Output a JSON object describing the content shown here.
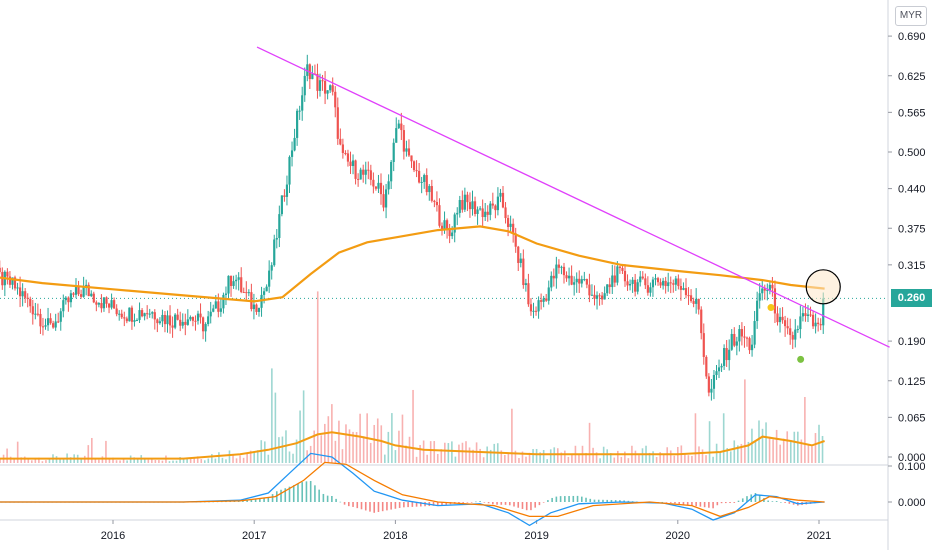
{
  "header": {
    "currency": "MYR"
  },
  "last_price": "0.260",
  "colors": {
    "up": "#26a69a",
    "down": "#ef5350",
    "ma_main": "#f39c12",
    "trendline": "#e040fb",
    "macd": "#2196f3",
    "signal": "#f57c00",
    "highlight_fill": "#fde7c9",
    "axis_text": "#131722"
  },
  "chart_data": [
    {
      "type": "candlestick",
      "name": "price",
      "y_ticks": [
        "0.690",
        "0.625",
        "0.565",
        "0.500",
        "0.440",
        "0.375",
        "0.315",
        "0.260",
        "0.190",
        "0.125",
        "0.065",
        "0.000"
      ],
      "y_tick_values": [
        0.69,
        0.625,
        0.565,
        0.5,
        0.44,
        0.375,
        0.315,
        0.26,
        0.19,
        0.125,
        0.065,
        0.0
      ],
      "x_ticks": [
        "2016",
        "2017",
        "2018",
        "2019",
        "2020",
        "2021"
      ],
      "x_tick_values": [
        2016,
        2017,
        2018,
        2019,
        2020,
        2021
      ],
      "price_path": [
        [
          2015.15,
          0.3
        ],
        [
          2015.3,
          0.28
        ],
        [
          2015.45,
          0.24
        ],
        [
          2015.55,
          0.21
        ],
        [
          2015.7,
          0.26
        ],
        [
          2015.8,
          0.275
        ],
        [
          2015.95,
          0.25
        ],
        [
          2016.1,
          0.235
        ],
        [
          2016.25,
          0.24
        ],
        [
          2016.4,
          0.225
        ],
        [
          2016.55,
          0.23
        ],
        [
          2016.65,
          0.215
        ],
        [
          2016.75,
          0.25
        ],
        [
          2016.85,
          0.3
        ],
        [
          2016.92,
          0.27
        ],
        [
          2017.0,
          0.245
        ],
        [
          2017.1,
          0.285
        ],
        [
          2017.2,
          0.42
        ],
        [
          2017.3,
          0.55
        ],
        [
          2017.38,
          0.64
        ],
        [
          2017.45,
          0.61
        ],
        [
          2017.55,
          0.6
        ],
        [
          2017.62,
          0.49
        ],
        [
          2017.72,
          0.47
        ],
        [
          2017.85,
          0.45
        ],
        [
          2017.92,
          0.42
        ],
        [
          2018.02,
          0.55
        ],
        [
          2018.1,
          0.48
        ],
        [
          2018.2,
          0.45
        ],
        [
          2018.3,
          0.4
        ],
        [
          2018.38,
          0.36
        ],
        [
          2018.45,
          0.42
        ],
        [
          2018.55,
          0.41
        ],
        [
          2018.65,
          0.4
        ],
        [
          2018.75,
          0.42
        ],
        [
          2018.82,
          0.37
        ],
        [
          2018.9,
          0.3
        ],
        [
          2018.96,
          0.235
        ],
        [
          2019.05,
          0.26
        ],
        [
          2019.15,
          0.31
        ],
        [
          2019.25,
          0.29
        ],
        [
          2019.35,
          0.285
        ],
        [
          2019.45,
          0.25
        ],
        [
          2019.55,
          0.3
        ],
        [
          2019.65,
          0.29
        ],
        [
          2019.75,
          0.28
        ],
        [
          2019.85,
          0.29
        ],
        [
          2019.95,
          0.285
        ],
        [
          2020.05,
          0.28
        ],
        [
          2020.15,
          0.24
        ],
        [
          2020.22,
          0.1
        ],
        [
          2020.3,
          0.15
        ],
        [
          2020.38,
          0.19
        ],
        [
          2020.45,
          0.2
        ],
        [
          2020.52,
          0.18
        ],
        [
          2020.58,
          0.27
        ],
        [
          2020.65,
          0.28
        ],
        [
          2020.72,
          0.22
        ],
        [
          2020.8,
          0.19
        ],
        [
          2020.88,
          0.23
        ],
        [
          2020.95,
          0.22
        ],
        [
          2021.0,
          0.205
        ],
        [
          2021.04,
          0.26
        ]
      ],
      "ma_long": [
        [
          2015.0,
          0.3
        ],
        [
          2015.5,
          0.285
        ],
        [
          2016.0,
          0.275
        ],
        [
          2016.5,
          0.265
        ],
        [
          2017.0,
          0.255
        ],
        [
          2017.2,
          0.262
        ],
        [
          2017.4,
          0.3
        ],
        [
          2017.6,
          0.335
        ],
        [
          2017.8,
          0.352
        ],
        [
          2018.0,
          0.36
        ],
        [
          2018.3,
          0.372
        ],
        [
          2018.6,
          0.378
        ],
        [
          2018.8,
          0.37
        ],
        [
          2019.0,
          0.35
        ],
        [
          2019.3,
          0.33
        ],
        [
          2019.6,
          0.315
        ],
        [
          2020.0,
          0.305
        ],
        [
          2020.3,
          0.298
        ],
        [
          2020.6,
          0.29
        ],
        [
          2020.8,
          0.282
        ],
        [
          2021.04,
          0.276
        ]
      ],
      "trendline": [
        [
          2017.02,
          0.672
        ],
        [
          2021.5,
          0.18
        ]
      ],
      "markers": [
        {
          "x": 2020.66,
          "y": 0.245,
          "color": "#f5c518"
        },
        {
          "x": 2020.87,
          "y": 0.16,
          "color": "#7cc242"
        }
      ],
      "highlight": {
        "x": 2021.03,
        "y": 0.279
      }
    },
    {
      "type": "bar",
      "name": "volume",
      "vol_spikes": [
        [
          2017.12,
          0.43
        ],
        [
          2017.35,
          0.33
        ],
        [
          2017.45,
          0.26
        ],
        [
          2018.05,
          0.22
        ],
        [
          2020.22,
          0.19
        ],
        [
          2020.48,
          0.38
        ],
        [
          2020.9,
          0.3
        ],
        [
          2021.04,
          0.58
        ]
      ],
      "vol_ma": [
        [
          2015.0,
          0.02
        ],
        [
          2016.5,
          0.02
        ],
        [
          2016.9,
          0.04
        ],
        [
          2017.1,
          0.06
        ],
        [
          2017.3,
          0.09
        ],
        [
          2017.45,
          0.13
        ],
        [
          2017.55,
          0.14
        ],
        [
          2017.75,
          0.12
        ],
        [
          2017.9,
          0.1
        ],
        [
          2018.0,
          0.08
        ],
        [
          2018.2,
          0.06
        ],
        [
          2018.6,
          0.05
        ],
        [
          2019.0,
          0.04
        ],
        [
          2019.5,
          0.04
        ],
        [
          2020.0,
          0.04
        ],
        [
          2020.3,
          0.05
        ],
        [
          2020.5,
          0.08
        ],
        [
          2020.6,
          0.12
        ],
        [
          2020.8,
          0.1
        ],
        [
          2020.95,
          0.08
        ],
        [
          2021.04,
          0.1
        ]
      ]
    },
    {
      "type": "line",
      "name": "macd",
      "y_ticks": [
        "0.100",
        "0.000"
      ],
      "y_tick_values": [
        0.1,
        0.0
      ],
      "series_macd": [
        [
          2015.0,
          0.0
        ],
        [
          2016.5,
          0.0
        ],
        [
          2016.9,
          0.005
        ],
        [
          2017.1,
          0.025
        ],
        [
          2017.25,
          0.08
        ],
        [
          2017.4,
          0.135
        ],
        [
          2017.55,
          0.125
        ],
        [
          2017.7,
          0.08
        ],
        [
          2017.85,
          0.03
        ],
        [
          2018.05,
          0.005
        ],
        [
          2018.3,
          -0.01
        ],
        [
          2018.6,
          -0.005
        ],
        [
          2018.8,
          -0.03
        ],
        [
          2018.95,
          -0.065
        ],
        [
          2019.1,
          -0.03
        ],
        [
          2019.3,
          -0.005
        ],
        [
          2019.6,
          0.0
        ],
        [
          2019.9,
          -0.003
        ],
        [
          2020.1,
          -0.02
        ],
        [
          2020.25,
          -0.05
        ],
        [
          2020.4,
          -0.03
        ],
        [
          2020.55,
          0.02
        ],
        [
          2020.7,
          0.015
        ],
        [
          2020.85,
          -0.005
        ],
        [
          2021.04,
          0.0
        ]
      ],
      "series_signal": [
        [
          2015.0,
          0.0
        ],
        [
          2016.5,
          0.0
        ],
        [
          2016.9,
          0.003
        ],
        [
          2017.15,
          0.015
        ],
        [
          2017.35,
          0.06
        ],
        [
          2017.5,
          0.11
        ],
        [
          2017.65,
          0.105
        ],
        [
          2017.85,
          0.06
        ],
        [
          2018.05,
          0.02
        ],
        [
          2018.3,
          0.0
        ],
        [
          2018.7,
          -0.01
        ],
        [
          2018.95,
          -0.04
        ],
        [
          2019.15,
          -0.04
        ],
        [
          2019.4,
          -0.01
        ],
        [
          2019.8,
          0.0
        ],
        [
          2020.1,
          -0.01
        ],
        [
          2020.3,
          -0.04
        ],
        [
          2020.5,
          -0.015
        ],
        [
          2020.65,
          0.015
        ],
        [
          2020.85,
          0.005
        ],
        [
          2021.04,
          0.0
        ]
      ]
    }
  ]
}
